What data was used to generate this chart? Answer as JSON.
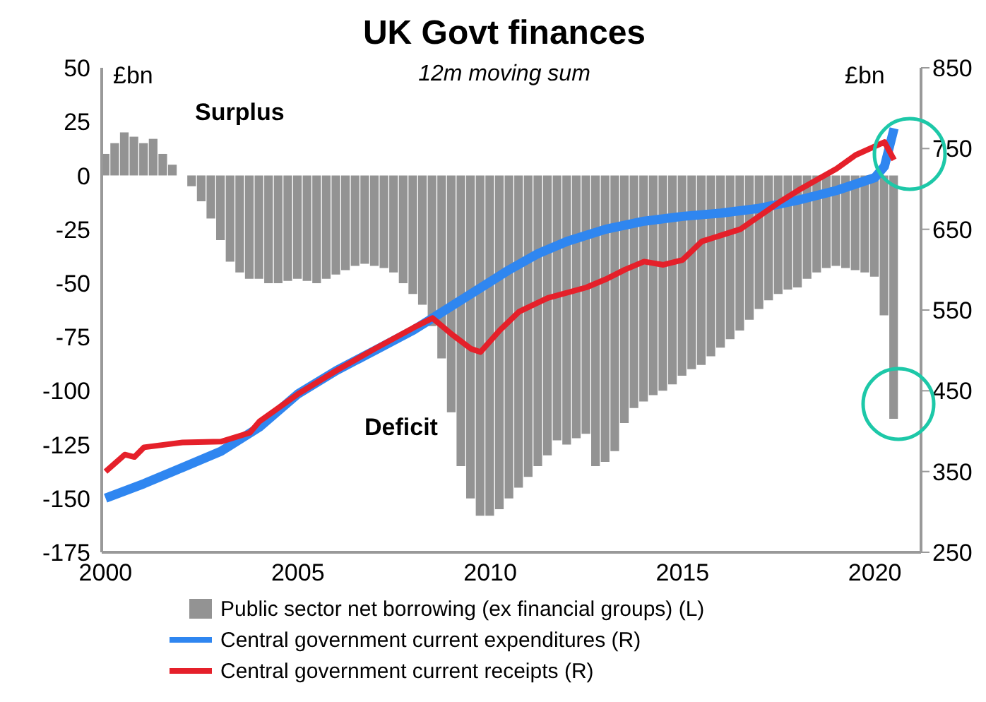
{
  "chart_data": {
    "type": "bar",
    "title": "UK Govt finances",
    "subtitle": "12m moving sum",
    "ylabel": "£bn",
    "y2label": "£bn",
    "annotations": [
      "Surplus",
      "Deficit"
    ],
    "xlim": [
      1999.9,
      2021.2
    ],
    "xticks": [
      2000,
      2005,
      2010,
      2015,
      2020
    ],
    "ylim": [
      -175,
      50
    ],
    "yticks": [
      -175,
      -150,
      -125,
      -100,
      -75,
      -50,
      -25,
      0,
      25,
      50
    ],
    "y2lim": [
      250,
      850
    ],
    "y2ticks": [
      250,
      350,
      450,
      550,
      650,
      750,
      850
    ],
    "legend": "bottom",
    "grid": false,
    "series": [
      {
        "name": "Public sector net borrowing (ex financial groups) (L)",
        "color": "#939393",
        "x": [
          2000,
          2000.25,
          2000.5,
          2000.75,
          2001,
          2001.25,
          2001.5,
          2001.75,
          2002,
          2002.25,
          2002.5,
          2002.75,
          2003,
          2003.25,
          2003.5,
          2003.75,
          2004,
          2004.25,
          2004.5,
          2004.75,
          2005,
          2005.25,
          2005.5,
          2005.75,
          2006,
          2006.25,
          2006.5,
          2006.75,
          2007,
          2007.25,
          2007.5,
          2007.75,
          2008,
          2008.25,
          2008.5,
          2008.75,
          2009,
          2009.25,
          2009.5,
          2009.75,
          2010,
          2010.25,
          2010.5,
          2010.75,
          2011,
          2011.25,
          2011.5,
          2011.75,
          2012,
          2012.25,
          2012.5,
          2012.75,
          2013,
          2013.25,
          2013.5,
          2013.75,
          2014,
          2014.25,
          2014.5,
          2014.75,
          2015,
          2015.25,
          2015.5,
          2015.75,
          2016,
          2016.25,
          2016.5,
          2016.75,
          2017,
          2017.25,
          2017.5,
          2017.75,
          2018,
          2018.25,
          2018.5,
          2018.75,
          2019,
          2019.25,
          2019.5,
          2019.75,
          2020,
          2020.25,
          2020.5
        ],
        "values": [
          10,
          15,
          20,
          18,
          15,
          17,
          10,
          5,
          0,
          -5,
          -12,
          -20,
          -30,
          -40,
          -45,
          -48,
          -48,
          -50,
          -50,
          -49,
          -48,
          -49,
          -50,
          -48,
          -46,
          -44,
          -42,
          -41,
          -42,
          -43,
          -45,
          -50,
          -55,
          -60,
          -70,
          -85,
          -110,
          -135,
          -150,
          -158,
          -158,
          -155,
          -150,
          -145,
          -140,
          -135,
          -130,
          -123,
          -125,
          -122,
          -120,
          -135,
          -133,
          -128,
          -115,
          -108,
          -105,
          -102,
          -100,
          -97,
          -93,
          -90,
          -88,
          -84,
          -80,
          -76,
          -72,
          -67,
          -62,
          -58,
          -55,
          -53,
          -52,
          -48,
          -45,
          -43,
          -42,
          -43,
          -44,
          -45,
          -47,
          -65,
          -113
        ]
      },
      {
        "name": "Central government current expenditures (R)",
        "type": "line",
        "axis": "y2",
        "color": "#2f86f0",
        "x": [
          2000,
          2001,
          2002,
          2003,
          2004,
          2005,
          2006,
          2007,
          2008,
          2008.5,
          2009,
          2010,
          2010.5,
          2011.25,
          2012,
          2013,
          2014,
          2015,
          2016,
          2017,
          2018,
          2019,
          2020,
          2020.25,
          2020.5
        ],
        "values": [
          317,
          335,
          355,
          375,
          405,
          446,
          475,
          500,
          525,
          540,
          555,
          585,
          600,
          620,
          635,
          650,
          660,
          666,
          670,
          676,
          686,
          698,
          714,
          728,
          775
        ]
      },
      {
        "name": "Central government current receipts (R)",
        "type": "line",
        "axis": "y2",
        "color": "#e5202a",
        "x": [
          2000,
          2000.5,
          2000.75,
          2001,
          2002,
          2003,
          2003.75,
          2004,
          2005,
          2006,
          2007,
          2008,
          2008.5,
          2009,
          2009.5,
          2009.75,
          2010.25,
          2010.75,
          2011.5,
          2012.5,
          2013,
          2013.5,
          2014,
          2014.5,
          2015,
          2015.5,
          2016.5,
          2017.5,
          2018,
          2019,
          2019.5,
          2020.25,
          2020.5
        ],
        "values": [
          350,
          371,
          368,
          380,
          386,
          387,
          398,
          412,
          446,
          475,
          502,
          528,
          540,
          520,
          502,
          498,
          525,
          548,
          565,
          578,
          588,
          600,
          610,
          606,
          612,
          635,
          650,
          683,
          698,
          725,
          742,
          758,
          736
        ]
      }
    ]
  }
}
